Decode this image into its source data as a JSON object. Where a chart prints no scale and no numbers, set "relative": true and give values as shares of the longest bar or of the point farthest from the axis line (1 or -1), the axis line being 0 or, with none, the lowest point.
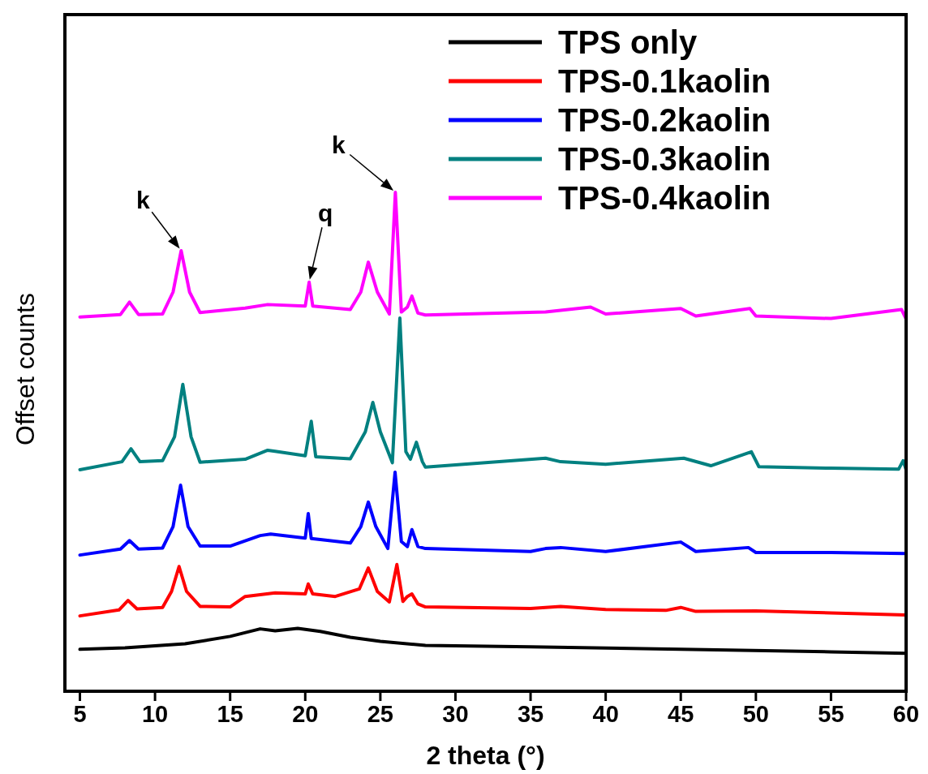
{
  "chart_data": {
    "type": "line",
    "relative": true,
    "xlabel": "2 theta (°)",
    "ylabel": "Offset counts",
    "xlim": [
      4,
      60
    ],
    "xticks": [
      5,
      10,
      15,
      20,
      25,
      30,
      35,
      40,
      45,
      50,
      55,
      60
    ],
    "legend": "top right",
    "grid": false,
    "annotations": [
      {
        "text": "k",
        "x": 11.74,
        "y": 0.883
      },
      {
        "text": "q",
        "x": 20.26,
        "y": 0.82
      },
      {
        "text": "k",
        "x": 26.0,
        "y": 1
      }
    ],
    "series": [
      {
        "name": "TPS only",
        "color": "#000000",
        "x": [
          5,
          8,
          12,
          15,
          17,
          18,
          19.5,
          21,
          23,
          25,
          28,
          35,
          45,
          55,
          60
        ],
        "values": [
          0.084,
          0.087,
          0.095,
          0.11,
          0.125,
          0.121,
          0.126,
          0.12,
          0.108,
          0.1,
          0.092,
          0.089,
          0.084,
          0.079,
          0.076
        ]
      },
      {
        "name": "TPS-0.1kaolin",
        "color": "#ff0000",
        "x": [
          5,
          7.6,
          8.2,
          8.8,
          10.5,
          11.1,
          11.6,
          12.1,
          13,
          15,
          16,
          18,
          20,
          20.2,
          20.5,
          22,
          23.6,
          24.2,
          24.8,
          25.6,
          26.1,
          26.5,
          26.8,
          27.1,
          27.5,
          28,
          35,
          37,
          40,
          44,
          45,
          46,
          50,
          55,
          60
        ],
        "values": [
          0.151,
          0.163,
          0.182,
          0.165,
          0.168,
          0.2,
          0.25,
          0.2,
          0.17,
          0.169,
          0.19,
          0.197,
          0.195,
          0.215,
          0.195,
          0.19,
          0.205,
          0.247,
          0.2,
          0.179,
          0.254,
          0.18,
          0.19,
          0.195,
          0.175,
          0.169,
          0.166,
          0.17,
          0.164,
          0.162,
          0.168,
          0.16,
          0.161,
          0.157,
          0.153
        ]
      },
      {
        "name": "TPS-0.2kaolin",
        "color": "#0000ff",
        "x": [
          5,
          7.7,
          8.3,
          8.9,
          10.5,
          11.2,
          11.7,
          12.2,
          13,
          15,
          17,
          17.7,
          20,
          20.2,
          20.4,
          21,
          23,
          23.7,
          24.2,
          24.7,
          25.5,
          25.98,
          26.4,
          26.8,
          27.1,
          27.5,
          28,
          35,
          36,
          37,
          40,
          45,
          46,
          49.5,
          50,
          55,
          60
        ],
        "values": [
          0.273,
          0.285,
          0.302,
          0.285,
          0.287,
          0.33,
          0.413,
          0.33,
          0.291,
          0.291,
          0.312,
          0.315,
          0.307,
          0.356,
          0.306,
          0.304,
          0.297,
          0.33,
          0.379,
          0.33,
          0.286,
          0.439,
          0.3,
          0.29,
          0.324,
          0.29,
          0.286,
          0.28,
          0.286,
          0.288,
          0.28,
          0.299,
          0.28,
          0.288,
          0.278,
          0.278,
          0.276
        ]
      },
      {
        "name": "TPS-0.3kaolin",
        "color": "#008080",
        "x": [
          5,
          7.8,
          8.4,
          9,
          10.5,
          11.3,
          11.85,
          12.4,
          13,
          16,
          17.5,
          18,
          20,
          20.4,
          20.7,
          23,
          24,
          24.5,
          25,
          25.8,
          26.3,
          26.7,
          27,
          27.4,
          27.8,
          28,
          36,
          37,
          40,
          45.2,
          47,
          49.7,
          50.2,
          55,
          59.5,
          59.8,
          60
        ],
        "values": [
          0.444,
          0.46,
          0.486,
          0.46,
          0.462,
          0.51,
          0.615,
          0.51,
          0.459,
          0.465,
          0.483,
          0.481,
          0.472,
          0.541,
          0.47,
          0.466,
          0.52,
          0.579,
          0.52,
          0.458,
          0.748,
          0.48,
          0.465,
          0.499,
          0.46,
          0.449,
          0.467,
          0.46,
          0.455,
          0.467,
          0.452,
          0.48,
          0.45,
          0.447,
          0.445,
          0.462,
          0.444
        ]
      },
      {
        "name": "TPS-0.4kaolin",
        "color": "#ff00ff",
        "x": [
          5,
          7.7,
          8.3,
          8.9,
          10.5,
          11.2,
          11.74,
          12.3,
          13,
          16,
          17.5,
          20,
          20.26,
          20.5,
          23,
          23.7,
          24.2,
          24.8,
          25.6,
          26.0,
          26.4,
          26.8,
          27.1,
          27.5,
          28,
          36,
          39,
          40,
          45,
          46,
          49.6,
          50,
          55,
          59.7,
          60
        ],
        "values": [
          0.75,
          0.755,
          0.78,
          0.755,
          0.756,
          0.8,
          0.883,
          0.8,
          0.759,
          0.768,
          0.775,
          0.772,
          0.82,
          0.772,
          0.765,
          0.8,
          0.86,
          0.8,
          0.756,
          1,
          0.76,
          0.77,
          0.792,
          0.758,
          0.754,
          0.76,
          0.77,
          0.756,
          0.767,
          0.752,
          0.767,
          0.752,
          0.747,
          0.765,
          0.746
        ]
      }
    ]
  }
}
